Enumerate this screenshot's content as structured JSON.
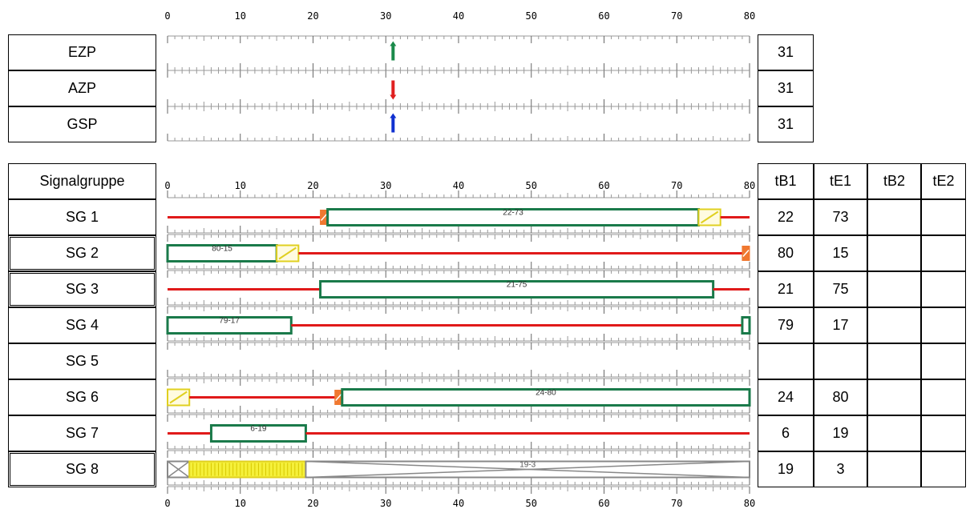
{
  "axis": {
    "min": 0,
    "max": 80,
    "major_step": 10,
    "minor_step": 1,
    "labels": [
      "0",
      "10",
      "20",
      "30",
      "40",
      "50",
      "60",
      "70",
      "80"
    ]
  },
  "points": [
    {
      "name": "EZP",
      "value": "31",
      "marker": "up-arrow-icon",
      "color": "#1a8a4a",
      "position": 31
    },
    {
      "name": "AZP",
      "value": "31",
      "marker": "down-arrow-icon",
      "color": "#e02020",
      "position": 31
    },
    {
      "name": "GSP",
      "value": "31",
      "marker": "up-arrow-icon",
      "color": "#1030d0",
      "position": 31
    }
  ],
  "table": {
    "header_label": "Signalgruppe",
    "columns": [
      "tB1",
      "tE1",
      "tB2",
      "tE2"
    ],
    "groups": [
      {
        "name": "SG 1",
        "values": [
          "22",
          "73",
          "",
          ""
        ],
        "segments": [
          {
            "type": "red",
            "from": 0,
            "to": 21
          },
          {
            "type": "redyellow",
            "from": 21,
            "to": 22
          },
          {
            "type": "green",
            "from": 22,
            "to": 73,
            "label": "22-73"
          },
          {
            "type": "yellow",
            "from": 73,
            "to": 76
          },
          {
            "type": "red",
            "from": 76,
            "to": 80
          }
        ]
      },
      {
        "name": "SG 2",
        "values": [
          "80",
          "15",
          "",
          ""
        ],
        "segments": [
          {
            "type": "green",
            "from": 0,
            "to": 15,
            "label": "80-15"
          },
          {
            "type": "yellow",
            "from": 15,
            "to": 18
          },
          {
            "type": "red",
            "from": 18,
            "to": 79
          },
          {
            "type": "redyellow",
            "from": 79,
            "to": 80
          }
        ]
      },
      {
        "name": "SG 3",
        "values": [
          "21",
          "75",
          "",
          ""
        ],
        "segments": [
          {
            "type": "red",
            "from": 0,
            "to": 21
          },
          {
            "type": "green",
            "from": 21,
            "to": 75,
            "label": "21-75"
          },
          {
            "type": "red",
            "from": 75,
            "to": 80
          }
        ]
      },
      {
        "name": "SG 4",
        "values": [
          "79",
          "17",
          "",
          ""
        ],
        "segments": [
          {
            "type": "green",
            "from": 0,
            "to": 17,
            "label": "79-17"
          },
          {
            "type": "red",
            "from": 17,
            "to": 79
          },
          {
            "type": "green",
            "from": 79,
            "to": 80
          }
        ]
      },
      {
        "name": "SG 5",
        "values": [
          "",
          "",
          "",
          ""
        ],
        "segments": []
      },
      {
        "name": "SG 6",
        "values": [
          "24",
          "80",
          "",
          ""
        ],
        "segments": [
          {
            "type": "yellow",
            "from": 0,
            "to": 3
          },
          {
            "type": "red",
            "from": 3,
            "to": 23
          },
          {
            "type": "redyellow",
            "from": 23,
            "to": 24
          },
          {
            "type": "green",
            "from": 24,
            "to": 80,
            "label": "24-80"
          }
        ]
      },
      {
        "name": "SG 7",
        "values": [
          "6",
          "19",
          "",
          ""
        ],
        "segments": [
          {
            "type": "red",
            "from": 0,
            "to": 6
          },
          {
            "type": "green",
            "from": 6,
            "to": 19,
            "label": "6-19"
          },
          {
            "type": "red",
            "from": 19,
            "to": 80
          }
        ]
      },
      {
        "name": "SG 8",
        "values": [
          "19",
          "3",
          "",
          ""
        ],
        "segments": [
          {
            "type": "dark",
            "from": 0,
            "to": 3
          },
          {
            "type": "blink",
            "from": 3,
            "to": 19
          },
          {
            "type": "dark",
            "from": 19,
            "to": 80,
            "label": "19-3"
          }
        ]
      }
    ]
  },
  "colors": {
    "red": "#e01a1a",
    "green": "#1a7a4a",
    "yellow": "#f5f03a",
    "yellow_border": "#e0d020",
    "redyellow": "#f07830",
    "dark": "#888888",
    "ticks": "#999999"
  }
}
